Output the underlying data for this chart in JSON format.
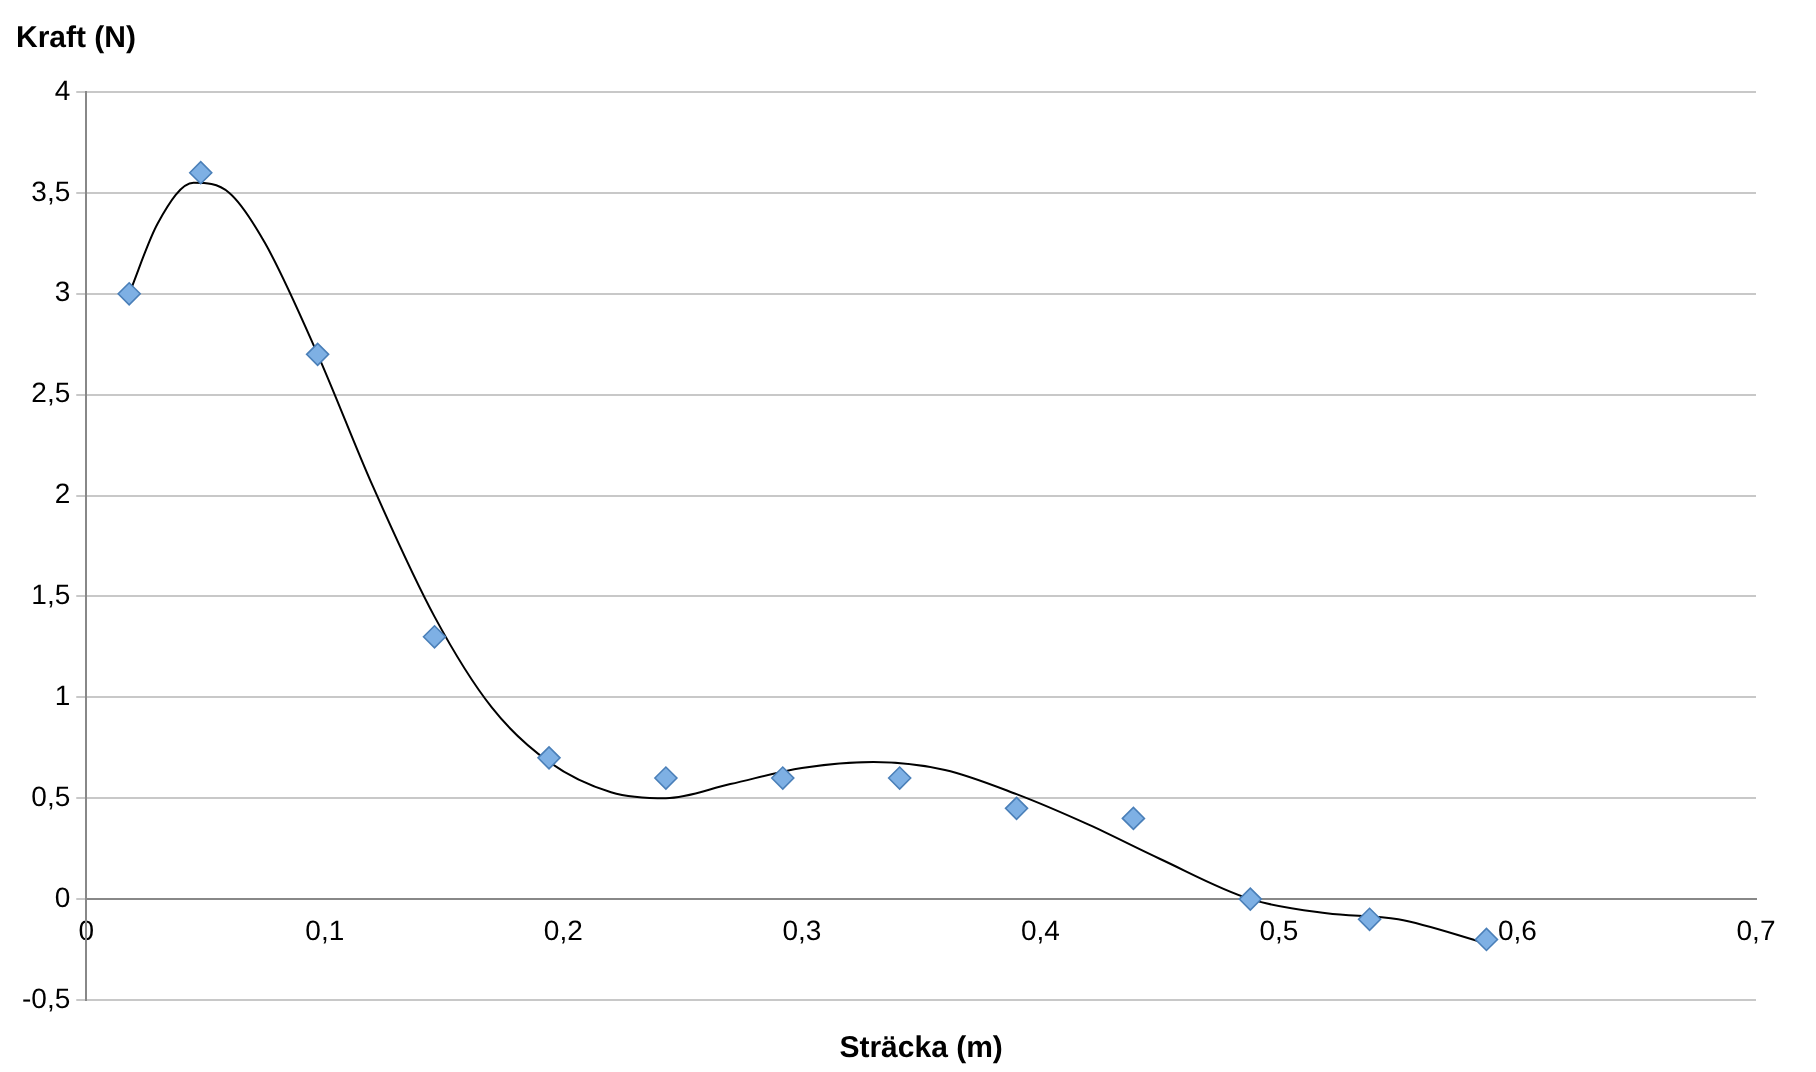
{
  "chart_data": {
    "type": "scatter",
    "xlabel": "Sträcka (m)",
    "ylabel": "Kraft (N)",
    "marker": "diamond",
    "grid": "y",
    "xlim": [
      0,
      0.7
    ],
    "ylim": [
      -0.5,
      4
    ],
    "xticks": [
      0,
      {
        "value": 0.1,
        "label": "0,1"
      },
      {
        "value": 0.2,
        "label": "0,2"
      },
      {
        "value": 0.3,
        "label": "0,3"
      },
      {
        "value": 0.4,
        "label": "0,4"
      },
      {
        "value": 0.5,
        "label": "0,5"
      },
      {
        "value": 0.6,
        "label": "0,6"
      },
      {
        "value": 0.7,
        "label": "0,7"
      }
    ],
    "yticks": [
      {
        "value": -0.5,
        "label": "-0,5"
      },
      0,
      {
        "value": 0.5,
        "label": "0,5"
      },
      1,
      {
        "value": 1.5,
        "label": "1,5"
      },
      2,
      {
        "value": 2.5,
        "label": "2,5"
      },
      3,
      {
        "value": 3.5,
        "label": "3,5"
      },
      4
    ],
    "series": [
      {
        "color": "#7eb0e4",
        "x": [
          0.018,
          0.048,
          0.097,
          0.146,
          0.194,
          0.243,
          0.292,
          0.341,
          0.39,
          0.439,
          0.488,
          0.538,
          0.587
        ],
        "values": [
          3,
          3.6,
          2.7,
          1.3,
          0.7,
          0.6,
          0.6,
          0.6,
          0.45,
          0.4,
          0,
          -0.1,
          -0.2
        ]
      },
      {
        "type": "line",
        "color": "#000000",
        "marker": "none",
        "x": [
          0.018,
          0.03,
          0.045,
          0.06,
          0.075,
          0.097,
          0.12,
          0.146,
          0.17,
          0.194,
          0.22,
          0.243,
          0.27,
          0.3,
          0.33,
          0.36,
          0.39,
          0.42,
          0.45,
          0.488,
          0.52,
          0.55,
          0.587
        ],
        "values": [
          3,
          3.35,
          3.55,
          3.5,
          3.25,
          2.7,
          2.05,
          1.4,
          0.95,
          0.68,
          0.53,
          0.5,
          0.57,
          0.65,
          0.68,
          0.64,
          0.52,
          0.37,
          0.2,
          0,
          -0.07,
          -0.1,
          -0.22
        ]
      }
    ]
  }
}
